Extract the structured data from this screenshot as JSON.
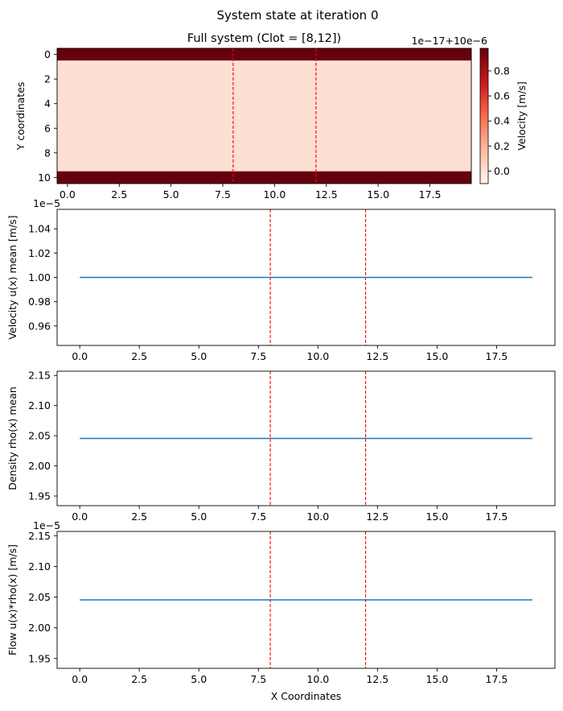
{
  "figure_title": "System state at iteration 0",
  "chart_data": [
    {
      "type": "heatmap",
      "title": "Full system (Clot = [8,12])",
      "xlabel": "",
      "ylabel": "Y coordinates",
      "xlim": [
        -0.5,
        19.5
      ],
      "ylim": [
        10.5,
        -0.5
      ],
      "xticks": [
        0,
        2.5,
        5,
        7.5,
        10,
        12.5,
        15,
        17.5
      ],
      "xtick_labels": [
        "0.0",
        "2.5",
        "5.0",
        "7.5",
        "10.0",
        "12.5",
        "15.0",
        "17.5"
      ],
      "yticks": [
        0,
        2,
        4,
        6,
        8,
        10
      ],
      "ytick_labels": [
        "0",
        "2",
        "4",
        "6",
        "8",
        "10"
      ],
      "rows": [
        {
          "y_start": -0.5,
          "y_end": 0.5,
          "value": 1.0
        },
        {
          "y_start": 0.5,
          "y_end": 9.5,
          "value": 0.0
        },
        {
          "y_start": 9.5,
          "y_end": 10.5,
          "value": 1.0
        }
      ],
      "clot_lines_x": [
        8,
        12
      ],
      "colorbar": {
        "label": "Velocity [m/s]",
        "offset_text": "1e−17+10e−6",
        "vmin": -0.1,
        "vmax": 0.98,
        "ticks": [
          0.8,
          0.6,
          0.4,
          0.2,
          0.0
        ],
        "tick_labels": [
          "0.8",
          "0.6",
          "0.4",
          "0.2",
          "0.0"
        ],
        "colormap": [
          "#fff5f0",
          "#fcbba1",
          "#fb6a4a",
          "#cb181d",
          "#67000d"
        ]
      }
    },
    {
      "type": "line",
      "title": "",
      "xlabel": "",
      "ylabel": "Velocity u(x) mean [m/s]",
      "y_offset_text": "1e−5",
      "xlim": [
        -0.95,
        19.95
      ],
      "ylim": [
        0.944,
        1.056
      ],
      "xticks": [
        0,
        2.5,
        5,
        7.5,
        10,
        12.5,
        15,
        17.5
      ],
      "xtick_labels": [
        "0.0",
        "2.5",
        "5.0",
        "7.5",
        "10.0",
        "12.5",
        "15.0",
        "17.5"
      ],
      "yticks": [
        0.96,
        0.98,
        1.0,
        1.02,
        1.04
      ],
      "ytick_labels": [
        "0.96",
        "0.98",
        "1.00",
        "1.02",
        "1.04"
      ],
      "clot_lines_x": [
        8,
        12
      ],
      "series": [
        {
          "x": [
            0,
            19
          ],
          "y": [
            1.0,
            1.0
          ],
          "color": "#1f77b4"
        }
      ]
    },
    {
      "type": "line",
      "title": "",
      "xlabel": "",
      "ylabel": "Density rho(x) mean",
      "y_offset_text": "",
      "xlim": [
        -0.95,
        19.95
      ],
      "ylim": [
        1.934,
        2.157
      ],
      "xticks": [
        0,
        2.5,
        5,
        7.5,
        10,
        12.5,
        15,
        17.5
      ],
      "xtick_labels": [
        "0.0",
        "2.5",
        "5.0",
        "7.5",
        "10.0",
        "12.5",
        "15.0",
        "17.5"
      ],
      "yticks": [
        1.95,
        2.0,
        2.05,
        2.1,
        2.15
      ],
      "ytick_labels": [
        "1.95",
        "2.00",
        "2.05",
        "2.10",
        "2.15"
      ],
      "clot_lines_x": [
        8,
        12
      ],
      "series": [
        {
          "x": [
            0,
            19
          ],
          "y": [
            2.0455,
            2.0455
          ],
          "color": "#1f77b4"
        }
      ]
    },
    {
      "type": "line",
      "title": "",
      "xlabel": "X Coordinates",
      "ylabel": "Flow u(x)*rho(x) [m/s]",
      "y_offset_text": "1e−5",
      "xlim": [
        -0.95,
        19.95
      ],
      "ylim": [
        1.934,
        2.157
      ],
      "xticks": [
        0,
        2.5,
        5,
        7.5,
        10,
        12.5,
        15,
        17.5
      ],
      "xtick_labels": [
        "0.0",
        "2.5",
        "5.0",
        "7.5",
        "10.0",
        "12.5",
        "15.0",
        "17.5"
      ],
      "yticks": [
        1.95,
        2.0,
        2.05,
        2.1,
        2.15
      ],
      "ytick_labels": [
        "1.95",
        "2.00",
        "2.05",
        "2.10",
        "2.15"
      ],
      "clot_lines_x": [
        8,
        12
      ],
      "series": [
        {
          "x": [
            0,
            19
          ],
          "y": [
            2.0455,
            2.0455
          ],
          "color": "#1f77b4"
        }
      ]
    }
  ],
  "colors": {
    "line": "#1f77b4",
    "clot_line": "#ff0000",
    "axis": "#000000"
  }
}
